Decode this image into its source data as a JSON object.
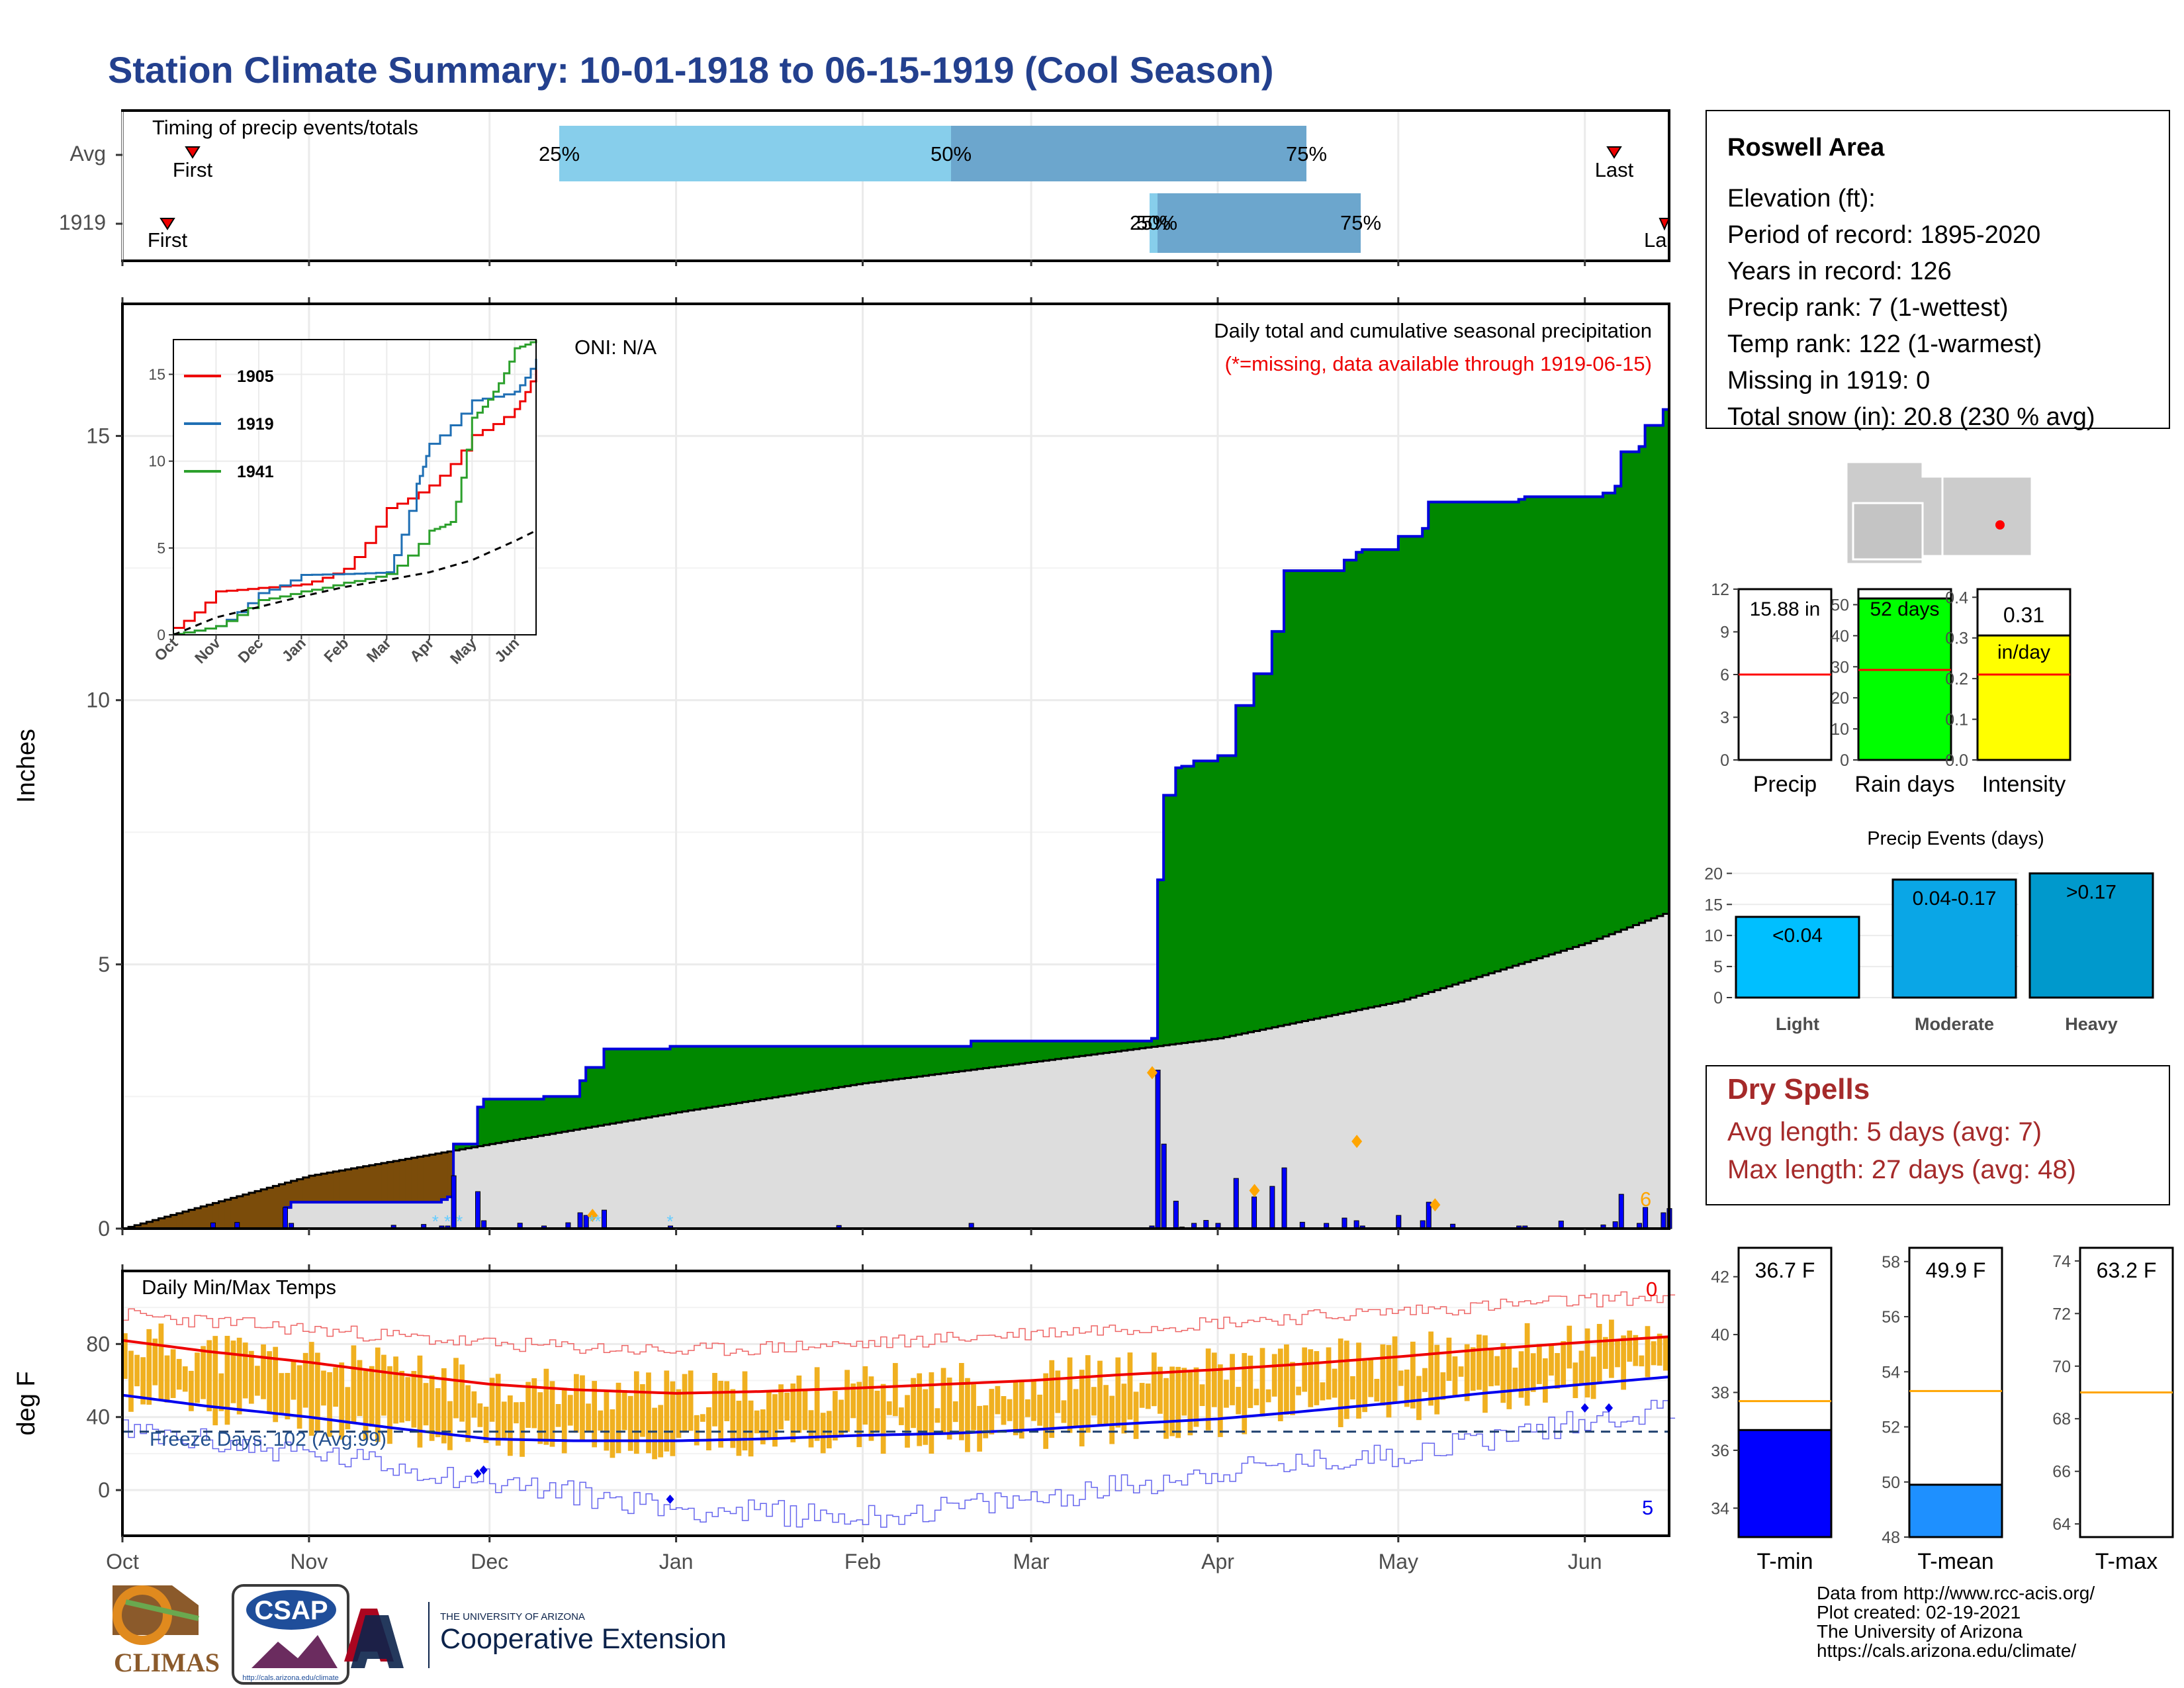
{
  "title": "Station Climate Summary: 10-01-1918 to 06-15-1919 (Cool Season)",
  "colors": {
    "title": "#23408e",
    "precip_green": "#008800",
    "precip_brown": "#7b4c0a",
    "normal_grey": "#dddddd",
    "cum_line": "#0000dd",
    "daily_bar": "#0000ff",
    "gold": "#f0b020",
    "max_red": "#ee0000",
    "min_blue": "#0000ee",
    "dry_red": "#a52a2a"
  },
  "timing": {
    "label": "Timing of precip events/totals",
    "rows": [
      "Avg",
      "1919"
    ],
    "avg": {
      "first_label": "First",
      "last_label": "Last",
      "p25": "25%",
      "p50": "50%",
      "p75": "75%"
    },
    "y1919": {
      "first_label": "First",
      "last_label": "La",
      "p25": "25%",
      "p50": "50%",
      "p75": "75%"
    }
  },
  "main": {
    "ylabel": "Inches",
    "header": "Daily total and cumulative seasonal precipitation",
    "missing_note": "(*=missing, data available through 1919-06-15)",
    "oni": "ONI: N/A",
    "annotation_6": "6",
    "y_ticks": [
      "0",
      "5",
      "10",
      "15"
    ],
    "x_ticks": [
      "Oct",
      "Nov",
      "Dec",
      "Jan",
      "Feb",
      "Mar",
      "Apr",
      "May",
      "Jun"
    ]
  },
  "inset": {
    "y_ticks": [
      "0",
      "5",
      "10",
      "15"
    ],
    "x_ticks": [
      "Oct",
      "Nov",
      "Dec",
      "Jan",
      "Feb",
      "Mar",
      "Apr",
      "May",
      "Jun"
    ],
    "legend": [
      {
        "name": "1905",
        "color": "#ee0000"
      },
      {
        "name": "1919",
        "color": "#1f6fb4"
      },
      {
        "name": "1941",
        "color": "#2ca02c"
      }
    ]
  },
  "temps": {
    "label": "Daily Min/Max Temps",
    "ylabel": "deg F",
    "y_ticks": [
      "80",
      "40",
      "0"
    ],
    "freeze": "Freeze Days: 102 (Avg:99)",
    "count_top": "0",
    "count_bottom": "5",
    "x_ticks": [
      "Oct",
      "Nov",
      "Dec",
      "Jan",
      "Feb",
      "Mar",
      "Apr",
      "May",
      "Jun"
    ]
  },
  "station": {
    "name": "Roswell Area",
    "lines": [
      "Elevation (ft):",
      "Period of record: 1895-2020",
      "Years in record: 126",
      "Precip rank: 7 (1-wettest)",
      "Temp rank: 122 (1-warmest)",
      "Missing in 1919: 0",
      "Total snow (in): 20.8 (230 % avg)"
    ]
  },
  "summary_bars": [
    {
      "label": "Precip",
      "value_label": "15.88 in",
      "value": 15.88,
      "avg": 6,
      "ymax": 12,
      "ticks": [
        "0",
        "3",
        "6",
        "9",
        "12"
      ],
      "color": "#ffffff"
    },
    {
      "label": "Rain days",
      "value_label": "52 days",
      "value": 52,
      "avg": 29,
      "ymax": 55,
      "ticks": [
        "0",
        "10",
        "20",
        "30",
        "40",
        "50"
      ],
      "color": "#00ff00"
    },
    {
      "label": "Intensity",
      "value_label": "0.31",
      "value_unit": "in/day",
      "value": 0.31,
      "avg": 0.21,
      "ymax": 0.42,
      "ticks": [
        "0.0",
        "0.1",
        "0.2",
        "0.3",
        "0.4"
      ],
      "color": "#ffff00"
    }
  ],
  "events": {
    "title": "Precip Events (days)",
    "ticks": [
      "0",
      "5",
      "10",
      "15",
      "20"
    ],
    "bars": [
      {
        "label": "Light",
        "bar_label": "<0.04",
        "value": 13,
        "color": "#00bfff"
      },
      {
        "label": "Moderate",
        "bar_label": "0.04-0.17",
        "value": 19,
        "color": "#0aa6e6"
      },
      {
        "label": "Heavy",
        "bar_label": ">0.17",
        "value": 20,
        "color": "#0099cc"
      }
    ]
  },
  "dry_spells": {
    "title": "Dry Spells",
    "avg_line": "Avg length: 5 days (avg: 7)",
    "max_line": "Max length: 27 days (avg: 48)"
  },
  "temp_bars": [
    {
      "label": "T-min",
      "value_label": "36.7 F",
      "value": 36.7,
      "avg": 37.7,
      "min": 33,
      "max": 43,
      "ticks": [
        "34",
        "36",
        "38",
        "40",
        "42"
      ],
      "color": "#0000ff"
    },
    {
      "label": "T-mean",
      "value_label": "49.9 F",
      "value": 49.9,
      "avg": 53.3,
      "min": 48,
      "max": 58.5,
      "ticks": [
        "48",
        "50",
        "52",
        "54",
        "56",
        "58"
      ],
      "color": "#1e90ff"
    },
    {
      "label": "T-max",
      "value_label": "63.2 F",
      "value": 63.2,
      "avg": 69.0,
      "min": 63.5,
      "max": 74.5,
      "ticks": [
        "64",
        "66",
        "68",
        "70",
        "72",
        "74"
      ],
      "color": "#ff0000"
    }
  ],
  "logos": {
    "climas": "CLIMAS",
    "csap": "CSAP",
    "csap_url": "http://cals.arizona.edu/climate",
    "ua_small": "THE UNIVERSITY OF ARIZONA",
    "ua_big": "Cooperative Extension"
  },
  "footer": [
    "Data from http://www.rcc-acis.org/",
    "Plot created: 02-19-2021",
    "The University of Arizona",
    "https://cals.arizona.edu/climate/"
  ],
  "chart_data": [
    {
      "type": "area",
      "title": "Daily total and cumulative seasonal precipitation",
      "ylabel": "Inches",
      "ylim": [
        0,
        17.5
      ],
      "x_range": [
        "1918-10-01",
        "1919-06-15"
      ],
      "series": [
        {
          "name": "1919",
          "x": [
            "1918-10-01",
            "1918-10-28",
            "1918-10-29",
            "1918-11-22",
            "1918-11-23",
            "1918-11-24",
            "1918-11-25",
            "1918-11-29",
            "1918-11-30",
            "1918-12-10",
            "1918-12-16",
            "1918-12-17",
            "1918-12-20",
            "1918-12-31",
            "1919-01-29",
            "1919-02-19",
            "1919-03-21",
            "1919-03-22",
            "1919-03-23",
            "1919-03-25",
            "1919-03-26",
            "1919-03-28",
            "1919-04-01",
            "1919-04-04",
            "1919-04-07",
            "1919-04-10",
            "1919-04-12",
            "1919-04-22",
            "1919-04-24",
            "1919-04-25",
            "1919-05-01",
            "1919-05-05",
            "1919-05-06",
            "1919-05-21",
            "1919-05-22",
            "1919-06-04",
            "1919-06-06",
            "1919-06-07",
            "1919-06-10",
            "1919-06-11",
            "1919-06-14",
            "1919-06-15"
          ],
          "values": [
            0.0,
            0.4,
            0.5,
            0.5,
            0.55,
            0.6,
            1.6,
            2.3,
            2.45,
            2.5,
            2.8,
            3.05,
            3.4,
            3.45,
            3.45,
            3.55,
            3.6,
            6.6,
            8.2,
            8.72,
            8.75,
            8.85,
            8.95,
            9.9,
            10.5,
            11.3,
            12.45,
            12.65,
            12.8,
            12.85,
            13.1,
            13.25,
            13.75,
            13.8,
            13.85,
            13.92,
            14.05,
            14.7,
            14.8,
            15.2,
            15.5,
            15.88
          ]
        },
        {
          "name": "Avg (normal)",
          "x": [
            "1918-10-01",
            "1918-11-01",
            "1918-12-01",
            "1919-01-01",
            "1919-02-01",
            "1919-03-01",
            "1919-04-01",
            "1919-05-01",
            "1919-06-01",
            "1919-06-15"
          ],
          "values": [
            0.0,
            1.0,
            1.6,
            2.2,
            2.75,
            3.15,
            3.6,
            4.3,
            5.4,
            6.0
          ]
        }
      ],
      "daily_peaks": [
        {
          "x": "1919-03-21",
          "value": 2.95
        },
        {
          "x": "1919-04-24",
          "value": 1.65
        },
        {
          "x": "1919-04-07",
          "value": 0.72
        },
        {
          "x": "1919-05-07",
          "value": 0.45
        },
        {
          "x": "1918-12-18",
          "value": 0.25
        }
      ]
    },
    {
      "type": "line",
      "title": "",
      "ylim": [
        0,
        17
      ],
      "x_range": [
        "Oct",
        "Jun"
      ],
      "series": [
        {
          "name": "1905",
          "x": [
            0,
            1,
            2,
            3,
            4,
            5,
            6,
            7,
            8,
            8.5
          ],
          "values": [
            0.4,
            2.5,
            2.7,
            2.9,
            3.8,
            7.3,
            8.6,
            11.5,
            13,
            15.3
          ]
        },
        {
          "name": "1919",
          "x": [
            0,
            1,
            2,
            3,
            4,
            5,
            5.7,
            6,
            7,
            8,
            8.5
          ],
          "values": [
            0.05,
            0.5,
            2.4,
            3.45,
            3.5,
            3.6,
            8.7,
            11,
            13.5,
            14,
            15.9
          ]
        },
        {
          "name": "1941",
          "x": [
            0,
            1,
            2,
            3,
            4,
            5,
            6,
            6.5,
            7,
            7.5,
            8,
            8.5
          ],
          "values": [
            0.05,
            0.5,
            2,
            2.5,
            3,
            3.5,
            6,
            6.5,
            12.5,
            14,
            16.5,
            17
          ]
        },
        {
          "name": "Normal",
          "x": [
            0,
            1,
            2,
            3,
            4,
            5,
            6,
            7,
            8,
            8.5
          ],
          "values": [
            0,
            1.0,
            1.6,
            2.2,
            2.75,
            3.15,
            3.6,
            4.3,
            5.4,
            6
          ]
        }
      ]
    },
    {
      "type": "line",
      "title": "Daily Min/Max Temps",
      "ylabel": "deg F",
      "ylim": [
        -25,
        120
      ],
      "x_range": [
        "1918-10-01",
        "1919-06-15"
      ],
      "series": [
        {
          "name": "Normal max",
          "x": [
            "1918-10-01",
            "1918-10-15",
            "1918-11-01",
            "1918-11-15",
            "1918-12-01",
            "1918-12-15",
            "1919-01-01",
            "1919-01-15",
            "1919-02-01",
            "1919-02-15",
            "1919-03-01",
            "1919-03-15",
            "1919-04-01",
            "1919-04-15",
            "1919-05-01",
            "1919-05-15",
            "1919-06-01",
            "1919-06-15"
          ],
          "values": [
            82,
            76,
            70,
            64,
            58,
            55,
            53,
            54,
            56,
            58,
            60,
            63,
            66,
            69,
            73,
            77,
            81,
            84
          ]
        },
        {
          "name": "Normal min",
          "x": [
            "1918-10-01",
            "1918-10-15",
            "1918-11-01",
            "1918-11-15",
            "1918-12-01",
            "1918-12-15",
            "1919-01-01",
            "1919-01-15",
            "1919-02-01",
            "1919-02-15",
            "1919-03-01",
            "1919-03-15",
            "1919-04-01",
            "1919-04-15",
            "1919-05-01",
            "1919-05-15",
            "1919-06-01",
            "1919-06-15"
          ],
          "values": [
            52,
            46,
            40,
            34,
            28,
            27,
            27,
            28,
            30,
            31,
            33,
            36,
            39,
            43,
            48,
            53,
            58,
            62
          ]
        },
        {
          "name": "Record max",
          "x": [
            "1918-10-01",
            "1918-11-01",
            "1918-12-01",
            "1919-01-01",
            "1919-02-01",
            "1919-03-01",
            "1919-04-01",
            "1919-05-01",
            "1919-06-01",
            "1919-06-15"
          ],
          "values": [
            96,
            88,
            80,
            76,
            80,
            86,
            92,
            98,
            104,
            106
          ]
        },
        {
          "name": "Record min",
          "x": [
            "1918-10-01",
            "1918-11-01",
            "1918-12-01",
            "1919-01-01",
            "1919-02-01",
            "1919-03-01",
            "1919-04-01",
            "1919-05-01",
            "1919-06-01",
            "1919-06-15"
          ],
          "values": [
            32,
            20,
            5,
            -10,
            -15,
            -5,
            10,
            20,
            38,
            45
          ]
        }
      ],
      "freeze_line": 32
    }
  ]
}
